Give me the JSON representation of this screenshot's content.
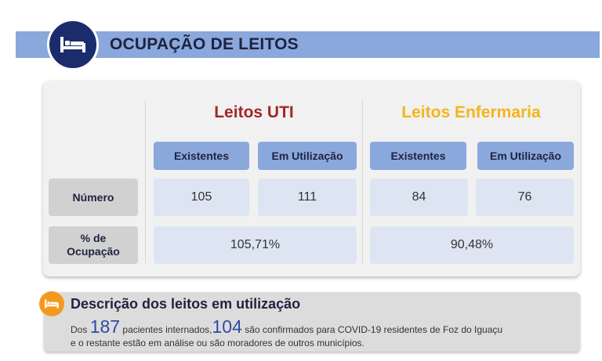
{
  "header": {
    "title": "OCUPAÇÃO DE LEITOS",
    "icon": "bed-icon"
  },
  "groups": {
    "uti": {
      "title": "Leitos UTI",
      "color": "#a4262c"
    },
    "enfermaria": {
      "title": "Leitos Enfermaria",
      "color": "#f2b51c"
    }
  },
  "columns": {
    "existentes": "Existentes",
    "em_utilizacao": "Em Utilização"
  },
  "rows": {
    "numero": {
      "label": "Número",
      "uti_existentes": "105",
      "uti_em_utilizacao": "111",
      "enf_existentes": "84",
      "enf_em_utilizacao": "76"
    },
    "ocupacao": {
      "label_line1": "% de",
      "label_line2": "Ocupação",
      "uti": "105,71%",
      "enfermaria": "90,48%"
    }
  },
  "description": {
    "icon": "bed-icon",
    "title": "Descrição dos leitos em utilização",
    "prefix": "Dos",
    "internados": "187",
    "middle": "pacientes internados,",
    "confirmados": "104",
    "suffix": "são confirmados para COVID-19 residentes de Foz do Iguaçu",
    "line2": "e o restante estão em análise ou são moradores de outros municípios."
  }
}
